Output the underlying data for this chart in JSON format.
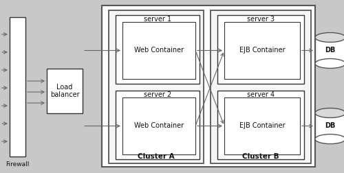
{
  "bg_color": "#c8c8c8",
  "inner_bg": "#ffffff",
  "box_ec": "#333333",
  "box_fc": "#ffffff",
  "cluster_fc": "#f2f2f2",
  "arrow_color": "#666666",
  "text_color": "#111111",
  "firewall_label": "Firewall",
  "lb_label": "Load\nbalancer",
  "server1_label": "server 1",
  "server2_label": "server 2",
  "server3_label": "server 3",
  "server4_label": "server 4",
  "web1_label": "Web Container",
  "web2_label": "Web Container",
  "ejb1_label": "EJB Container",
  "ejb2_label": "EJB Container",
  "clusterA_label": "Cluster A",
  "clusterB_label": "Cluster B",
  "db_label": "DB",
  "xlim": [
    0,
    500
  ],
  "ylim": [
    0,
    252
  ]
}
